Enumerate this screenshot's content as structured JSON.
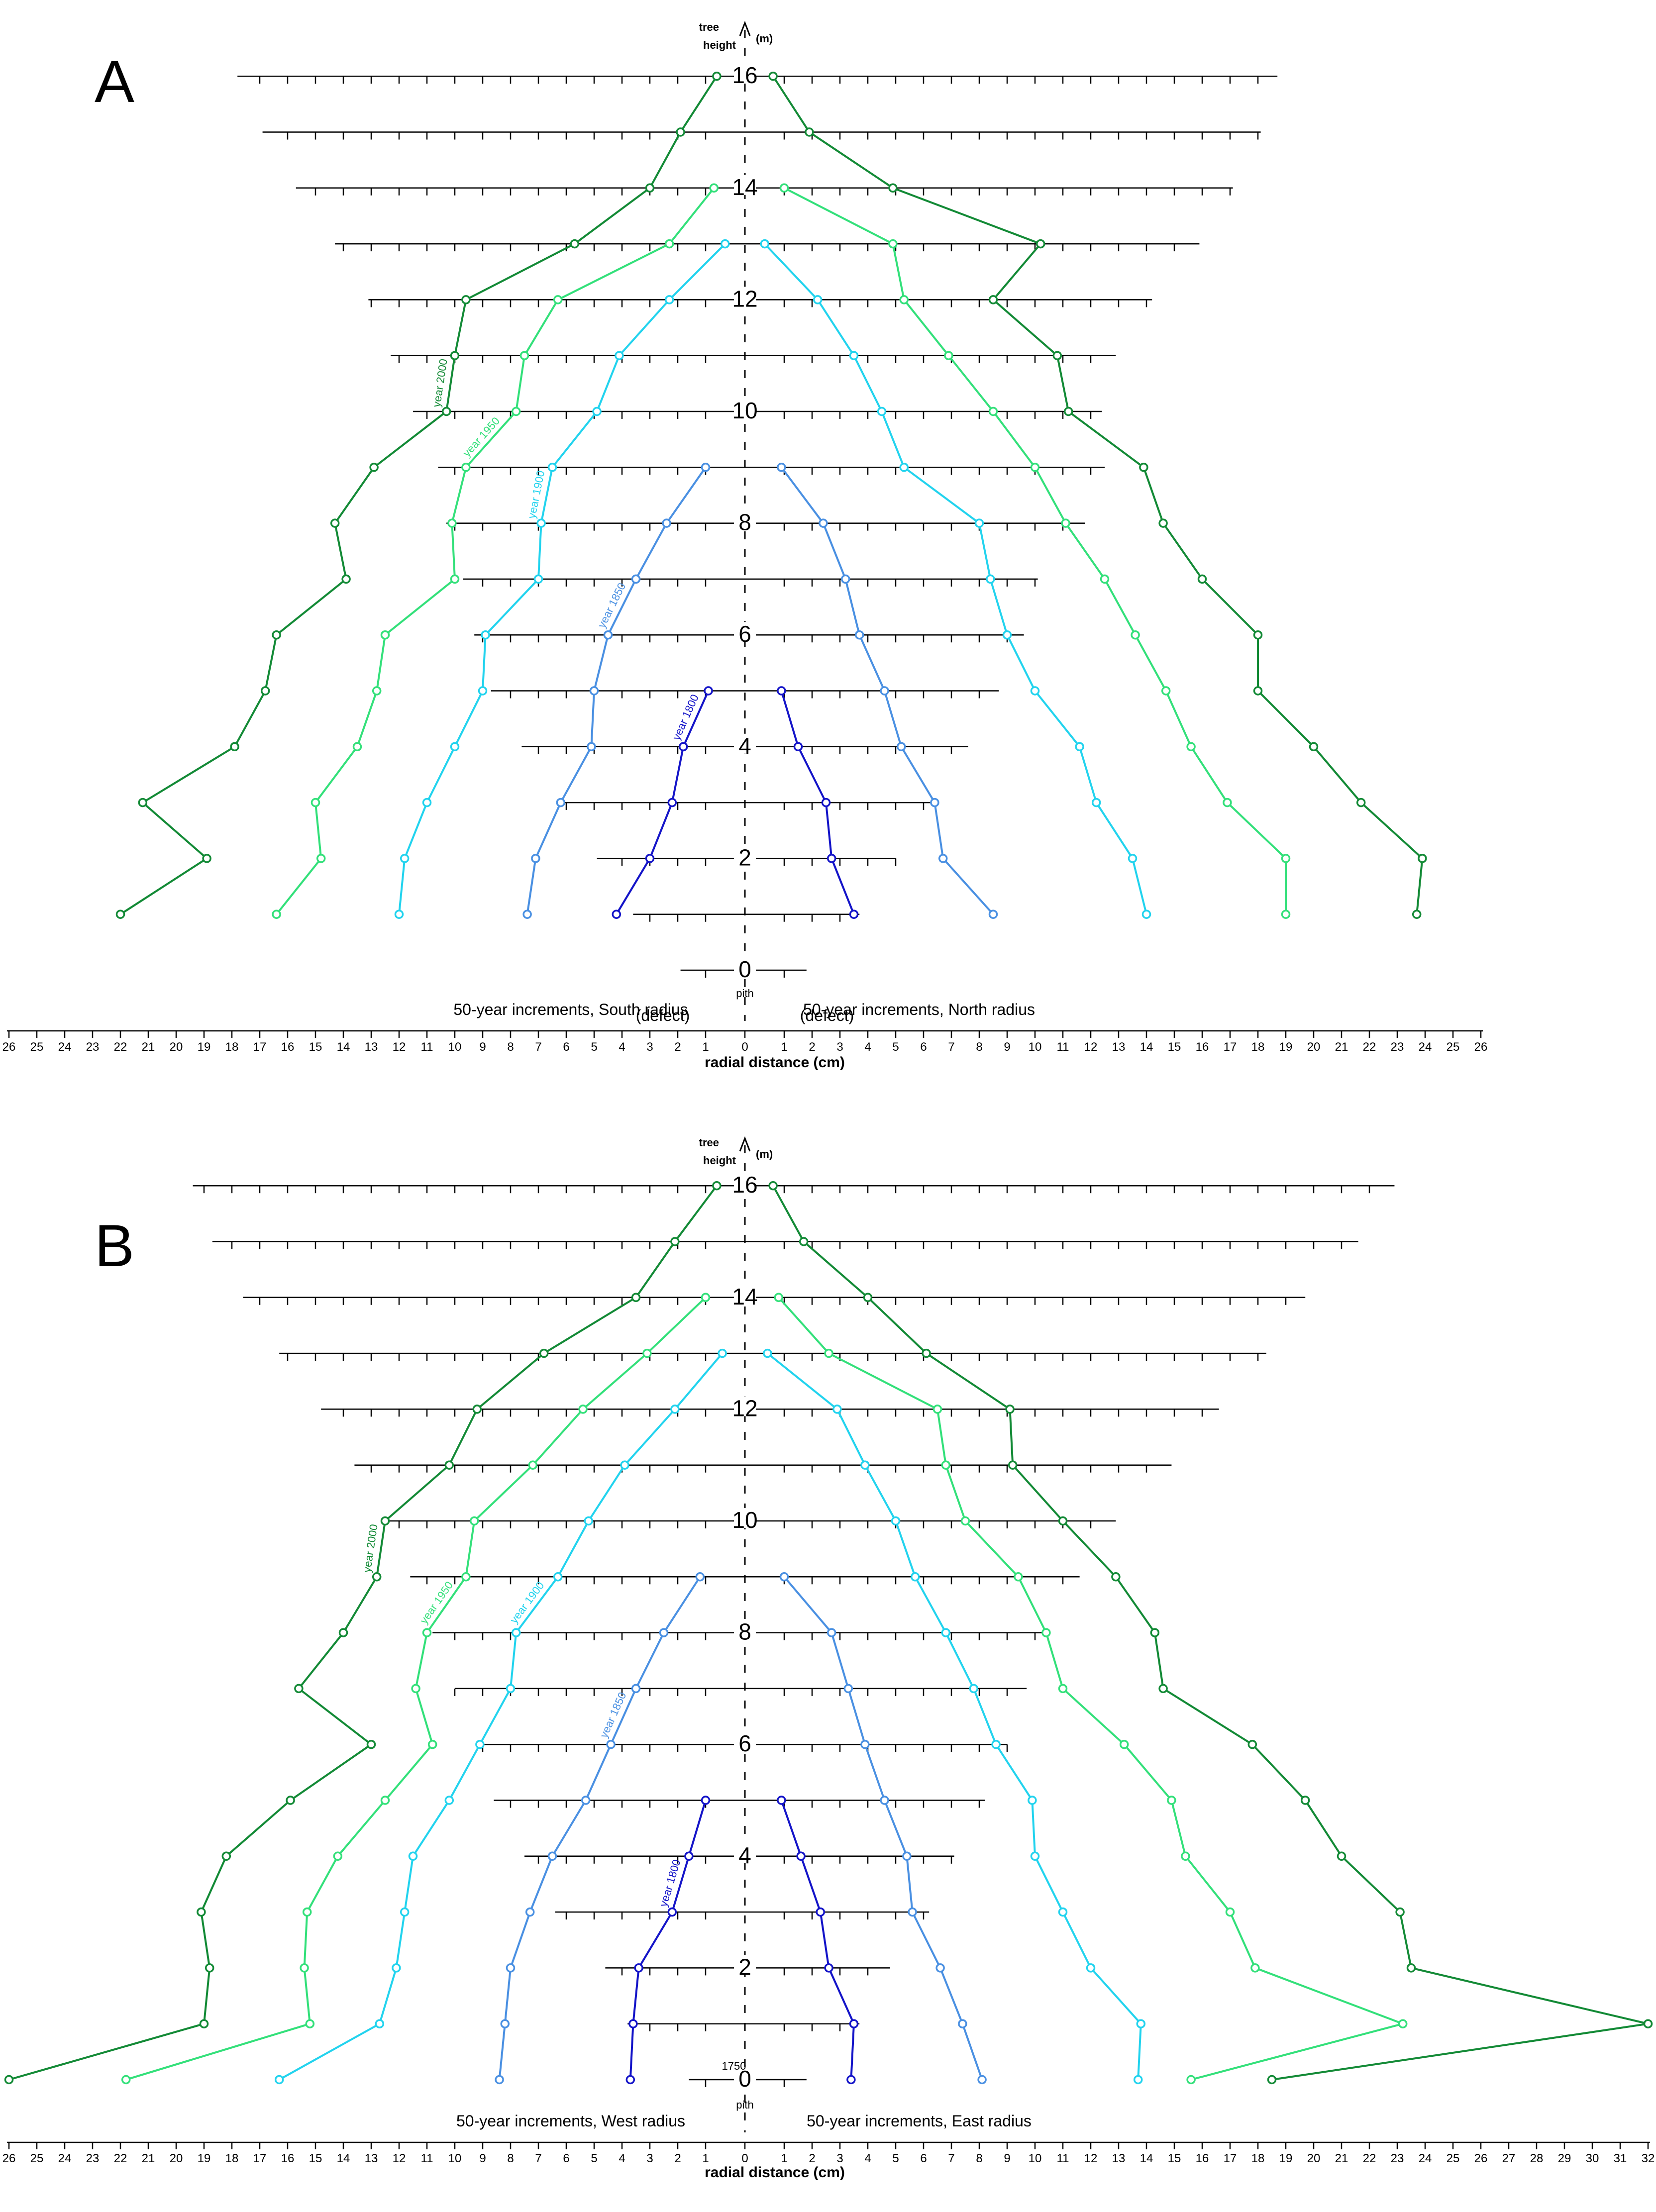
{
  "figure": {
    "panels": [
      "A",
      "B"
    ],
    "height_axis_label": "tree height",
    "height_unit": "(m)",
    "pith_label": "pith",
    "x_title": "radial distance (cm)",
    "marker_1750": "1750"
  },
  "chart_data": [
    {
      "type": "line",
      "panel": "A",
      "title": "",
      "xlabel": "radial distance (cm)",
      "ylabel": "tree height (m)",
      "y_ticks": [
        "0",
        "2",
        "4",
        "6",
        "8",
        "10",
        "12",
        "14",
        "16"
      ],
      "left_ticks": [
        "26",
        "25",
        "24",
        "23",
        "22",
        "21",
        "20",
        "19",
        "18",
        "17",
        "16",
        "15",
        "14",
        "13",
        "12",
        "11",
        "10",
        "9",
        "8",
        "7",
        "6",
        "5",
        "4",
        "3",
        "2",
        "1"
      ],
      "right_ticks": [
        "0",
        "1",
        "2",
        "3",
        "4",
        "5",
        "6",
        "7",
        "8",
        "9",
        "10",
        "11",
        "12",
        "13",
        "14",
        "15",
        "16",
        "17",
        "18",
        "19",
        "20",
        "21",
        "22",
        "23",
        "24",
        "25",
        "26"
      ],
      "xlim_left": [
        0,
        26
      ],
      "xlim_right": [
        0,
        26
      ],
      "left_radius_label": "50-year increments, South radius",
      "right_radius_label": "50-year increments, North radius",
      "annotations": [
        "(defect)",
        "(defect)"
      ],
      "series": [
        {
          "name": "year 1800",
          "color": "#1414c8",
          "left": [
            [
              1,
              4.2
            ],
            [
              2,
              3.0
            ],
            [
              3,
              2.2
            ],
            [
              4,
              1.8
            ],
            [
              5,
              0.9
            ]
          ],
          "right": [
            [
              1,
              3.5
            ],
            [
              2,
              2.7
            ],
            [
              3,
              2.5
            ],
            [
              4,
              1.5
            ],
            [
              5,
              0.9
            ]
          ]
        },
        {
          "name": "year 1850",
          "color": "#4a90e2",
          "left": [
            [
              1,
              7.4
            ],
            [
              2,
              7.1
            ],
            [
              3,
              6.2
            ],
            [
              4,
              5.1
            ],
            [
              5,
              5.0
            ],
            [
              6,
              4.5
            ],
            [
              7,
              3.5
            ],
            [
              8,
              2.4
            ],
            [
              9,
              1.0
            ]
          ],
          "right": [
            [
              1,
              8.5
            ],
            [
              2,
              6.7
            ],
            [
              3,
              6.4
            ],
            [
              4,
              5.2
            ],
            [
              5,
              4.6
            ],
            [
              6,
              3.7
            ],
            [
              7,
              3.2
            ],
            [
              8,
              2.4
            ],
            [
              9,
              0.9
            ]
          ]
        },
        {
          "name": "year 1900",
          "color": "#22d3ee",
          "left": [
            [
              1,
              12.0
            ],
            [
              2,
              11.8
            ],
            [
              3,
              11.0
            ],
            [
              4,
              10.0
            ],
            [
              5,
              9.0
            ],
            [
              6,
              8.9
            ],
            [
              7,
              7.0
            ],
            [
              8,
              6.9
            ],
            [
              9,
              6.5
            ],
            [
              10,
              4.9
            ],
            [
              11,
              4.1
            ],
            [
              12,
              2.3
            ],
            [
              13,
              0.3
            ]
          ],
          "right": [
            [
              1,
              14.0
            ],
            [
              2,
              13.5
            ],
            [
              3,
              12.2
            ],
            [
              4,
              11.6
            ],
            [
              5,
              10.0
            ],
            [
              6,
              9.0
            ],
            [
              7,
              8.4
            ],
            [
              8,
              8.0
            ],
            [
              9,
              5.3
            ],
            [
              10,
              4.5
            ],
            [
              11,
              3.5
            ],
            [
              12,
              2.2
            ],
            [
              13,
              0.3
            ]
          ]
        },
        {
          "name": "year 1950",
          "color": "#33e07a",
          "left": [
            [
              1,
              16.4
            ],
            [
              2,
              14.8
            ],
            [
              3,
              15.0
            ],
            [
              4,
              13.5
            ],
            [
              5,
              12.8
            ],
            [
              6,
              12.5
            ],
            [
              7,
              10.0
            ],
            [
              8,
              10.1
            ],
            [
              9,
              9.6
            ],
            [
              10,
              7.8
            ],
            [
              11,
              7.5
            ],
            [
              12,
              6.3
            ],
            [
              13,
              2.3
            ],
            [
              14,
              0.7
            ]
          ],
          "right": [
            [
              1,
              19.0
            ],
            [
              2,
              19.0
            ],
            [
              3,
              16.9
            ],
            [
              4,
              15.6
            ],
            [
              5,
              14.7
            ],
            [
              6,
              13.6
            ],
            [
              7,
              12.5
            ],
            [
              8,
              11.1
            ],
            [
              9,
              10.0
            ],
            [
              10,
              8.5
            ],
            [
              11,
              6.9
            ],
            [
              12,
              5.3
            ],
            [
              13,
              4.9
            ],
            [
              14,
              1.0
            ]
          ]
        },
        {
          "name": "year 2000",
          "color": "#138a36",
          "left": [
            [
              1,
              22.0
            ],
            [
              2,
              18.9
            ],
            [
              3,
              21.2
            ],
            [
              4,
              17.9
            ],
            [
              5,
              16.8
            ],
            [
              6,
              16.4
            ],
            [
              7,
              13.9
            ],
            [
              8,
              14.3
            ],
            [
              9,
              12.9
            ],
            [
              10,
              10.3
            ],
            [
              11,
              10.0
            ],
            [
              12,
              9.6
            ],
            [
              13,
              5.7
            ],
            [
              14,
              3.0
            ],
            [
              15,
              1.9
            ],
            [
              16,
              0.6
            ]
          ],
          "right": [
            [
              1,
              23.7
            ],
            [
              2,
              23.9
            ],
            [
              3,
              21.7
            ],
            [
              4,
              20.0
            ],
            [
              5,
              18.0
            ],
            [
              6,
              18.0
            ],
            [
              7,
              16.0
            ],
            [
              8,
              14.6
            ],
            [
              9,
              13.9
            ],
            [
              10,
              11.2
            ],
            [
              11,
              10.8
            ],
            [
              12,
              8.5
            ],
            [
              13,
              10.2
            ],
            [
              14,
              4.9
            ],
            [
              15,
              1.9
            ],
            [
              16,
              0.6
            ]
          ]
        }
      ]
    },
    {
      "type": "line",
      "panel": "B",
      "title": "",
      "xlabel": "radial distance (cm)",
      "ylabel": "tree height (m)",
      "y_ticks": [
        "0",
        "2",
        "4",
        "6",
        "8",
        "10",
        "12",
        "14",
        "16"
      ],
      "left_ticks": [
        "26",
        "25",
        "24",
        "23",
        "22",
        "21",
        "20",
        "19",
        "18",
        "17",
        "16",
        "15",
        "14",
        "13",
        "12",
        "11",
        "10",
        "9",
        "8",
        "7",
        "6",
        "5",
        "4",
        "3",
        "2",
        "1"
      ],
      "right_ticks": [
        "0",
        "1",
        "2",
        "3",
        "4",
        "5",
        "6",
        "7",
        "8",
        "9",
        "10",
        "11",
        "12",
        "13",
        "14",
        "15",
        "16",
        "17",
        "18",
        "19",
        "20",
        "21",
        "22",
        "23",
        "24",
        "25",
        "26",
        "27",
        "28",
        "29",
        "30",
        "31",
        "32"
      ],
      "xlim_left": [
        0,
        26
      ],
      "xlim_right": [
        0,
        32
      ],
      "left_radius_label": "50-year increments, West  radius",
      "right_radius_label": "50-year increments, East  radius",
      "annotations": [],
      "series": [
        {
          "name": "year 1800",
          "color": "#1414c8",
          "left": [
            [
              0,
              3.7
            ],
            [
              1,
              3.6
            ],
            [
              2,
              3.4
            ],
            [
              3,
              2.2
            ],
            [
              4,
              1.6
            ],
            [
              5,
              1.0
            ]
          ],
          "right": [
            [
              0,
              3.4
            ],
            [
              1,
              3.5
            ],
            [
              2,
              2.6
            ],
            [
              3,
              2.3
            ],
            [
              4,
              1.6
            ],
            [
              5,
              0.9
            ]
          ]
        },
        {
          "name": "year 1850",
          "color": "#4a90e2",
          "left": [
            [
              0,
              8.4
            ],
            [
              1,
              8.2
            ],
            [
              2,
              8.0
            ],
            [
              3,
              7.3
            ],
            [
              4,
              6.5
            ],
            [
              5,
              5.3
            ],
            [
              6,
              4.4
            ],
            [
              7,
              3.5
            ],
            [
              8,
              2.5
            ],
            [
              9,
              1.2
            ]
          ],
          "right": [
            [
              0,
              8.1
            ],
            [
              1,
              7.4
            ],
            [
              2,
              6.6
            ],
            [
              3,
              5.6
            ],
            [
              4,
              5.4
            ],
            [
              5,
              4.6
            ],
            [
              6,
              3.9
            ],
            [
              7,
              3.3
            ],
            [
              8,
              2.7
            ],
            [
              9,
              1.0
            ]
          ]
        },
        {
          "name": "year 1900",
          "color": "#22d3ee",
          "left": [
            [
              0,
              16.3
            ],
            [
              1,
              12.7
            ],
            [
              2,
              12.1
            ],
            [
              3,
              11.8
            ],
            [
              4,
              11.5
            ],
            [
              5,
              10.2
            ],
            [
              6,
              9.1
            ],
            [
              7,
              8.0
            ],
            [
              8,
              7.8
            ],
            [
              9,
              6.3
            ],
            [
              10,
              5.2
            ],
            [
              11,
              3.9
            ],
            [
              12,
              2.1
            ],
            [
              13,
              0.4
            ]
          ],
          "right": [
            [
              0,
              13.7
            ],
            [
              1,
              13.8
            ],
            [
              2,
              12.0
            ],
            [
              3,
              11.0
            ],
            [
              4,
              10.0
            ],
            [
              5,
              9.9
            ],
            [
              6,
              8.6
            ],
            [
              7,
              7.8
            ],
            [
              8,
              6.8
            ],
            [
              9,
              5.7
            ],
            [
              10,
              5.0
            ],
            [
              11,
              3.9
            ],
            [
              12,
              2.9
            ],
            [
              13,
              0.4
            ]
          ]
        },
        {
          "name": "year 1950",
          "color": "#33e07a",
          "left": [
            [
              0,
              21.8
            ],
            [
              1,
              15.2
            ],
            [
              2,
              15.4
            ],
            [
              3,
              15.3
            ],
            [
              4,
              14.2
            ],
            [
              5,
              12.5
            ],
            [
              6,
              10.8
            ],
            [
              7,
              11.4
            ],
            [
              8,
              11.0
            ],
            [
              9,
              9.6
            ],
            [
              10,
              9.3
            ],
            [
              11,
              7.2
            ],
            [
              12,
              5.4
            ],
            [
              13,
              3.1
            ],
            [
              14,
              1.0
            ]
          ],
          "right": [
            [
              0,
              15.6
            ],
            [
              1,
              23.2
            ],
            [
              2,
              17.9
            ],
            [
              3,
              17.0
            ],
            [
              4,
              15.4
            ],
            [
              5,
              14.9
            ],
            [
              6,
              13.2
            ],
            [
              7,
              11.0
            ],
            [
              8,
              10.4
            ],
            [
              9,
              9.4
            ],
            [
              10,
              7.5
            ],
            [
              11,
              6.8
            ],
            [
              12,
              6.5
            ],
            [
              13,
              2.6
            ],
            [
              14,
              0.8
            ]
          ]
        },
        {
          "name": "year 2000",
          "color": "#138a36",
          "left": [
            [
              0,
              26.0
            ],
            [
              1,
              19.0
            ],
            [
              2,
              18.8
            ],
            [
              3,
              19.1
            ],
            [
              4,
              18.2
            ],
            [
              5,
              15.9
            ],
            [
              6,
              13.0
            ],
            [
              7,
              15.6
            ],
            [
              8,
              14.0
            ],
            [
              9,
              12.8
            ],
            [
              10,
              12.5
            ],
            [
              11,
              10.2
            ],
            [
              12,
              9.2
            ],
            [
              13,
              6.8
            ],
            [
              14,
              3.5
            ],
            [
              15,
              2.1
            ],
            [
              16,
              0.6
            ]
          ],
          "right": [
            [
              0,
              18.5
            ],
            [
              1,
              32.0
            ],
            [
              2,
              23.5
            ],
            [
              3,
              23.1
            ],
            [
              4,
              21.0
            ],
            [
              5,
              19.7
            ],
            [
              6,
              17.8
            ],
            [
              7,
              14.6
            ],
            [
              8,
              14.3
            ],
            [
              9,
              12.9
            ],
            [
              10,
              11.0
            ],
            [
              11,
              9.2
            ],
            [
              12,
              9.1
            ],
            [
              13,
              6.1
            ],
            [
              14,
              4.0
            ],
            [
              15,
              1.7
            ],
            [
              16,
              0.6
            ]
          ]
        }
      ]
    }
  ]
}
